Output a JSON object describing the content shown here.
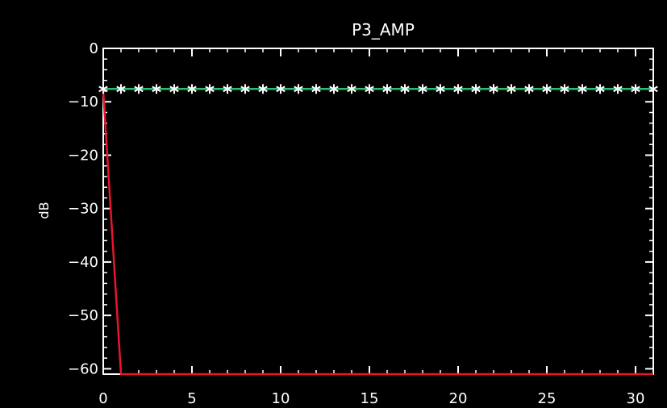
{
  "chart_data": {
    "type": "line",
    "title": "P3_AMP",
    "xlabel": "",
    "ylabel": "dB",
    "xlim": [
      0,
      31
    ],
    "ylim": [
      -61,
      0
    ],
    "x_ticks": [
      0,
      5,
      10,
      15,
      20,
      25,
      30
    ],
    "y_ticks": [
      0,
      -10,
      -20,
      -30,
      -40,
      -50,
      -60
    ],
    "x_tick_labels": [
      "0",
      "5",
      "10",
      "15",
      "20",
      "25",
      "30"
    ],
    "y_tick_labels": [
      "0",
      "−10",
      "−20",
      "−30",
      "−40",
      "−50",
      "−60"
    ],
    "grid": false,
    "series": [
      {
        "style": "line",
        "color": "#e8152b",
        "x": [
          0,
          1,
          2,
          3,
          4,
          5,
          6,
          7,
          8,
          9,
          10,
          11,
          12,
          13,
          14,
          15,
          16,
          17,
          18,
          19,
          20,
          21,
          22,
          23,
          24,
          25,
          26,
          27,
          28,
          29,
          30,
          31
        ],
        "values": [
          -8,
          -61,
          -61,
          -61,
          -61,
          -61,
          -61,
          -61,
          -61,
          -61,
          -61,
          -61,
          -61,
          -61,
          -61,
          -61,
          -61,
          -61,
          -61,
          -61,
          -61,
          -61,
          -61,
          -61,
          -61,
          -61,
          -61,
          -61,
          -61,
          -61,
          -61,
          -61
        ]
      },
      {
        "style": "line",
        "color": "#2fbf6a",
        "x": [
          0,
          31
        ],
        "values": [
          -7.6,
          -7.6
        ]
      },
      {
        "style": "markers",
        "marker": "asterisk",
        "color": "#ffffff",
        "x": [
          0,
          1,
          2,
          3,
          4,
          5,
          6,
          7,
          8,
          9,
          10,
          11,
          12,
          13,
          14,
          15,
          16,
          17,
          18,
          19,
          20,
          21,
          22,
          23,
          24,
          25,
          26,
          27,
          28,
          29,
          30,
          31
        ],
        "values": [
          -7.6,
          -7.6,
          -7.6,
          -7.6,
          -7.6,
          -7.6,
          -7.6,
          -7.6,
          -7.6,
          -7.6,
          -7.6,
          -7.6,
          -7.6,
          -7.6,
          -7.6,
          -7.6,
          -7.6,
          -7.6,
          -7.6,
          -7.6,
          -7.6,
          -7.6,
          -7.6,
          -7.6,
          -7.6,
          -7.6,
          -7.6,
          -7.6,
          -7.6,
          -7.6,
          -7.6,
          -7.6
        ]
      }
    ]
  }
}
